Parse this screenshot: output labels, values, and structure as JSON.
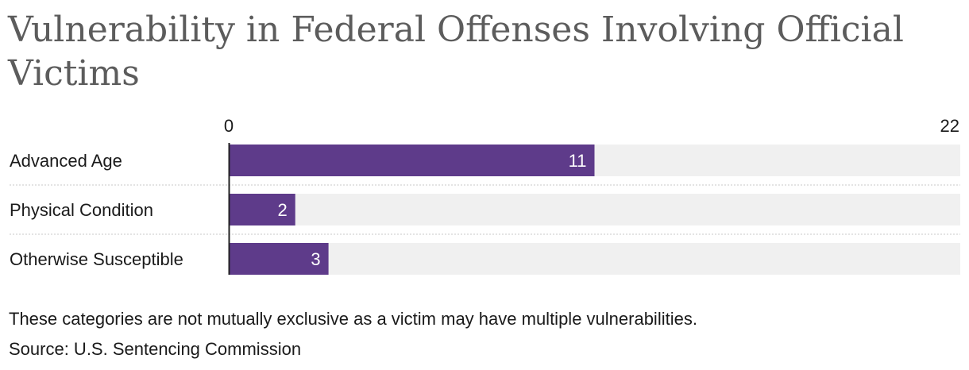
{
  "chart_data": {
    "type": "bar",
    "orientation": "horizontal",
    "title": "Vulnerability in Federal Offenses Involving Official Victims",
    "categories": [
      "Advanced Age",
      "Physical Condition",
      "Otherwise Susceptible"
    ],
    "values": [
      11,
      2,
      3
    ],
    "xlim": [
      0,
      22
    ],
    "axis_labels": [
      "0",
      "22"
    ],
    "data_labels": [
      "11",
      "2",
      "3"
    ],
    "grid": false,
    "legend": "none",
    "colors": {
      "bar": "#5e3b8a",
      "track": "#f0f0f0",
      "axis": "#222222",
      "label": "#ffffff",
      "title": "#5c5c5c"
    }
  },
  "footnotes": {
    "note": "These categories are not mutually exclusive as a victim may have multiple vulnerabilities.",
    "source": "Source: U.S. Sentencing Commission"
  }
}
